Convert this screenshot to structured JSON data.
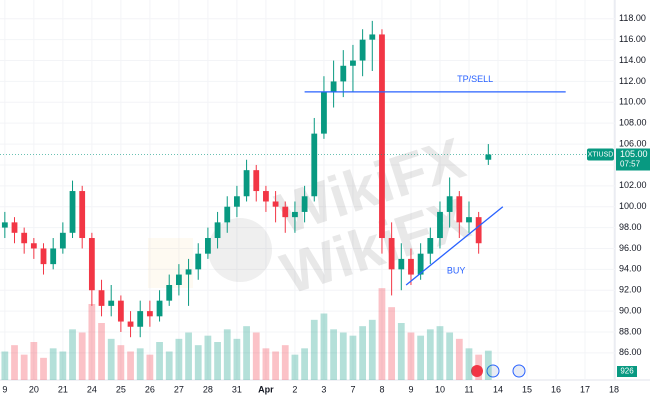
{
  "chart_data": {
    "type": "candlestick",
    "symbol": "XTIUSD",
    "watermark": "WikiFX",
    "up_color": "#089981",
    "down_color": "#f23645",
    "open": [
      98,
      98.5,
      97.5,
      96.5,
      96,
      94.5,
      96,
      97.5,
      101.5,
      97,
      92,
      90.5,
      91,
      89,
      88.5,
      90,
      89.5,
      91,
      92.5,
      93.5,
      94,
      95.5,
      97,
      98.5,
      100,
      101,
      103.5,
      101.5,
      100.5,
      100,
      99,
      99.5,
      101,
      107,
      111,
      112,
      113.5,
      114,
      116,
      116.5,
      97,
      94,
      95,
      93.5,
      95.5,
      97,
      99.5,
      101,
      98.5,
      99,
      104.5
    ],
    "high": [
      99.5,
      99,
      98,
      97,
      96.5,
      97,
      98.5,
      102.5,
      102,
      97.5,
      93,
      92.5,
      91.5,
      90,
      91,
      91,
      92,
      93.5,
      94.5,
      95,
      96.5,
      98,
      99.5,
      101,
      102,
      104.5,
      104,
      102,
      101.5,
      100.5,
      100.5,
      102,
      108.5,
      112.5,
      114,
      115,
      115.5,
      117,
      117.8,
      117,
      98.5,
      96.5,
      96,
      96.5,
      98,
      100.5,
      102.8,
      101.5,
      100.5,
      99.5,
      106
    ],
    "low": [
      97,
      96.5,
      95.5,
      95,
      93.5,
      94,
      95.5,
      97,
      96,
      90.5,
      89.5,
      89.5,
      88,
      87.5,
      87.5,
      88.5,
      89,
      90.5,
      91.5,
      90.5,
      93,
      95,
      96,
      97.5,
      99,
      100.5,
      100.5,
      99.5,
      98.5,
      97.5,
      97.5,
      98.5,
      100.5,
      106.5,
      109.5,
      110.5,
      111,
      112.5,
      113,
      95.5,
      91.5,
      92,
      92.5,
      93,
      94.5,
      96,
      98,
      97,
      97.5,
      95.5,
      104
    ],
    "close": [
      98.5,
      97.5,
      96.5,
      96,
      94.5,
      96,
      97.5,
      101.5,
      97,
      92,
      90.5,
      91,
      89,
      88.5,
      90,
      89.5,
      91,
      92.5,
      93.5,
      94,
      95.5,
      97,
      98.5,
      100,
      101,
      103.5,
      101.5,
      100.5,
      100,
      99,
      99.5,
      101,
      107,
      111,
      112,
      113.5,
      114,
      116,
      116.5,
      97,
      94,
      95,
      93.5,
      95.5,
      97,
      99.5,
      101,
      98.5,
      99,
      96.5,
      105
    ],
    "volume": [
      900,
      1100,
      800,
      1200,
      700,
      1000,
      900,
      1600,
      1500,
      2400,
      1800,
      1300,
      1100,
      900,
      1000,
      800,
      1200,
      900,
      1300,
      1500,
      1100,
      1400,
      1200,
      1600,
      1300,
      1700,
      1500,
      1000,
      900,
      1100,
      800,
      1000,
      1900,
      2100,
      1600,
      1500,
      1400,
      1700,
      1900,
      2900,
      2300,
      1800,
      1500,
      1400,
      1600,
      1700,
      1500,
      1300,
      1000,
      800,
      926
    ],
    "vlim": [
      0,
      3000
    ],
    "ylim": [
      83.4,
      119.8
    ],
    "yticks": [
      {
        "value": 86,
        "label": "86.00"
      },
      {
        "value": 88,
        "label": "88.00"
      },
      {
        "value": 90,
        "label": "90.00"
      },
      {
        "value": 92,
        "label": "92.00"
      },
      {
        "value": 94,
        "label": "94.00"
      },
      {
        "value": 96,
        "label": "96.00"
      },
      {
        "value": 98,
        "label": "98.00"
      },
      {
        "value": 100,
        "label": "100.00"
      },
      {
        "value": 102,
        "label": "102.00"
      },
      {
        "value": 104,
        "label": "104.00"
      },
      {
        "value": 106,
        "label": "106.00"
      },
      {
        "value": 108,
        "label": "108.00"
      },
      {
        "value": 110,
        "label": "110.00"
      },
      {
        "value": 112,
        "label": "112.00"
      },
      {
        "value": 114,
        "label": "114.00"
      },
      {
        "value": 116,
        "label": "116.00"
      },
      {
        "value": 118,
        "label": "118.00"
      }
    ],
    "xlim": [
      -0.5,
      63.1
    ],
    "xticks": [
      {
        "value": 0,
        "label": "9"
      },
      {
        "value": 3,
        "label": "20"
      },
      {
        "value": 6,
        "label": "21"
      },
      {
        "value": 9,
        "label": "24"
      },
      {
        "value": 12,
        "label": "25"
      },
      {
        "value": 15,
        "label": "26"
      },
      {
        "value": 18,
        "label": "27"
      },
      {
        "value": 21,
        "label": "28"
      },
      {
        "value": 24,
        "label": "31"
      },
      {
        "value": 27,
        "label": "Apr"
      },
      {
        "value": 30,
        "label": "2"
      },
      {
        "value": 33,
        "label": "3"
      },
      {
        "value": 36,
        "label": "7"
      },
      {
        "value": 39,
        "label": "8"
      },
      {
        "value": 42,
        "label": "9"
      },
      {
        "value": 45,
        "label": "10"
      },
      {
        "value": 48,
        "label": "11"
      },
      {
        "value": 51,
        "label": "14"
      },
      {
        "value": 54,
        "label": "15"
      },
      {
        "value": 57,
        "label": "16"
      },
      {
        "value": 60,
        "label": "17"
      },
      {
        "value": 63,
        "label": "18"
      }
    ],
    "last_price": {
      "value": 105,
      "label": "105.00"
    },
    "countdown": "07:57",
    "annotations": [
      {
        "type": "hline",
        "label": "TP/SELL",
        "x": [
          31,
          58
        ],
        "y": [
          111,
          111
        ]
      },
      {
        "type": "trendline",
        "label": "BUY",
        "x": [
          41.5,
          51.5
        ],
        "y": [
          92.5,
          100
        ]
      }
    ]
  }
}
